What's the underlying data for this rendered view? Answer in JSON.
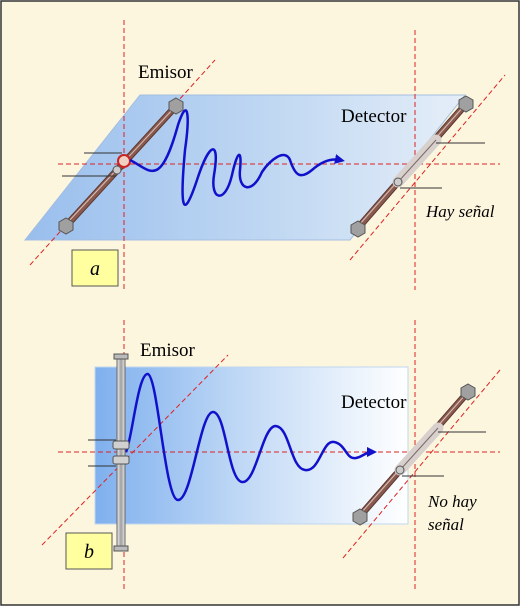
{
  "panel_a": {
    "emitter_label": "Emisor",
    "detector_label": "Detector",
    "result_label": "Hay señal",
    "panel_letter": "a"
  },
  "panel_b": {
    "emitter_label": "Emisor",
    "detector_label": "Detector",
    "result_line1": "No hay",
    "result_line2": "señal",
    "panel_letter": "b"
  },
  "colors": {
    "background": "#fdf6df",
    "border": "#333333",
    "plane": "#8fb9ef",
    "wave": "#1111cc",
    "guide": "#dd2222",
    "rod": "#8a5a4f",
    "label_box": "#ffffa0"
  }
}
